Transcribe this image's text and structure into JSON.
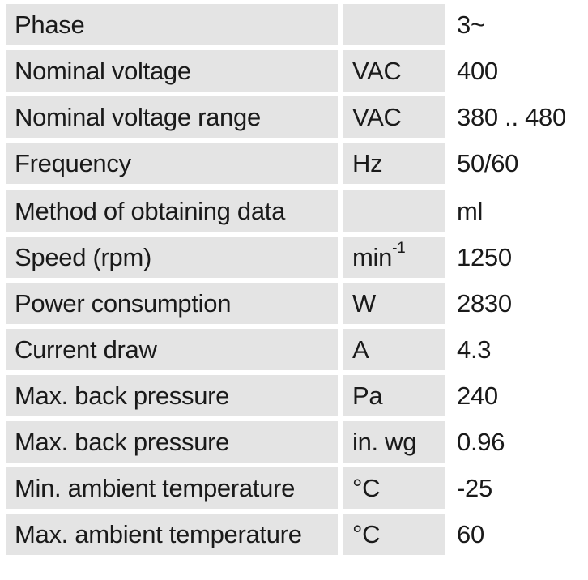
{
  "groups": [
    {
      "rows": [
        {
          "name": "Phase",
          "unit": "",
          "value": "3~"
        },
        {
          "name": "Nominal voltage",
          "unit": "VAC",
          "value": "400"
        },
        {
          "name": "Nominal voltage range",
          "unit": "VAC",
          "value": "380 .. 480"
        },
        {
          "name": "Frequency",
          "unit": "Hz",
          "value": "50/60"
        }
      ]
    },
    {
      "rows": [
        {
          "name": "Method of obtaining data",
          "unit": "",
          "value": "ml"
        },
        {
          "name": "Speed (rpm)",
          "unit": "min",
          "unit_sup": "-1",
          "value": "1250"
        },
        {
          "name": "Power consumption",
          "unit": "W",
          "value": "2830"
        },
        {
          "name": "Current draw",
          "unit": "A",
          "value": "4.3"
        },
        {
          "name": "Max. back pressure",
          "unit": "Pa",
          "value": "240"
        },
        {
          "name": "Max. back pressure",
          "unit": "in. wg",
          "value": "0.96"
        },
        {
          "name": "Min. ambient temperature",
          "unit": "°C",
          "value": "-25"
        },
        {
          "name": "Max. ambient temperature",
          "unit": "°C",
          "value": "60"
        }
      ]
    }
  ]
}
